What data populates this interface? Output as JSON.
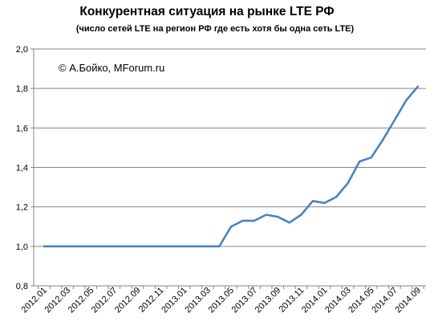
{
  "chart_data": {
    "type": "line",
    "title": "Конкурентная ситуация на рынке LTE РФ",
    "subtitle": "(число сетей LTE на регион РФ где есть хотя бы одна сеть LTE)",
    "annotation": "© А.Бойко, MForum.ru",
    "xlabel": "",
    "ylabel": "",
    "ylim": [
      0.8,
      2.0
    ],
    "yticks": [
      "0,8",
      "1,0",
      "1,2",
      "1,4",
      "1,6",
      "1,8",
      "2,0"
    ],
    "ytick_values": [
      0.8,
      1.0,
      1.2,
      1.4,
      1.6,
      1.8,
      2.0
    ],
    "grid": "horizontal",
    "legend": "none",
    "line_color": "#4f81bd",
    "x": [
      "2012.01",
      "2012.02",
      "2012.03",
      "2012.04",
      "2012.05",
      "2012.06",
      "2012.07",
      "2012.08",
      "2012.09",
      "2012.10",
      "2012.11",
      "2012.12",
      "2013.01",
      "2013.02",
      "2013.03",
      "2013.04",
      "2013.05",
      "2013.06",
      "2013.07",
      "2013.08",
      "2013.09",
      "2013.10",
      "2013.11",
      "2013.12",
      "2014.01",
      "2014.02",
      "2014.03",
      "2014.04",
      "2014.05",
      "2014.06",
      "2014.07",
      "2014.08",
      "2014.09"
    ],
    "xtick_labels": [
      "2012.01",
      "2012.03",
      "2012.05",
      "2012.07",
      "2012.09",
      "2012.11",
      "2013.01",
      "2013.03",
      "2013.05",
      "2013.07",
      "2013.09",
      "2013.11",
      "2014.01",
      "2014.03",
      "2014.05",
      "2014.07",
      "2014.09"
    ],
    "series": [
      {
        "values": [
          1.0,
          1.0,
          1.0,
          1.0,
          1.0,
          1.0,
          1.0,
          1.0,
          1.0,
          1.0,
          1.0,
          1.0,
          1.0,
          1.0,
          1.0,
          1.0,
          1.1,
          1.13,
          1.13,
          1.16,
          1.15,
          1.12,
          1.16,
          1.23,
          1.22,
          1.25,
          1.32,
          1.43,
          1.45,
          1.54,
          1.64,
          1.74,
          1.81
        ]
      }
    ]
  }
}
